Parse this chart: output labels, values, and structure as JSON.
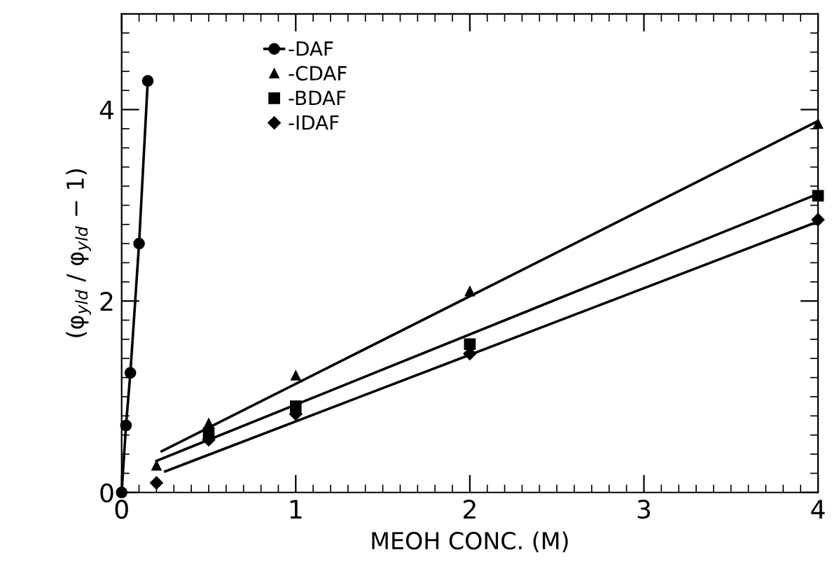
{
  "chart_data": {
    "type": "scatter",
    "xlabel": "MEOH CONC. (M)",
    "ylabel": "(φ$_{yld}$ / φ$_{yld}$ − 1)",
    "xlim": [
      0,
      4
    ],
    "ylim": [
      0,
      5
    ],
    "xticks": [
      0,
      1,
      2,
      3,
      4
    ],
    "yticks": [
      0,
      2,
      4
    ],
    "grid": false,
    "legend": "top left",
    "series": [
      {
        "name": "-DAF",
        "type": "line",
        "marker": "circle",
        "color": "#000000",
        "x": [
          0,
          0.025,
          0.05,
          0.1,
          0.15
        ],
        "values": [
          0,
          0.7,
          1.25,
          2.6,
          4.3
        ]
      },
      {
        "name": "-CDAF",
        "marker": "triangle",
        "color": "#000000",
        "x": [
          0.2,
          0.5,
          1,
          2,
          4
        ],
        "values": [
          0.28,
          0.72,
          1.22,
          2.1,
          3.85
        ]
      },
      {
        "name": "-BDAF",
        "marker": "square",
        "color": "#000000",
        "x": [
          0.5,
          1,
          2,
          4
        ],
        "values": [
          0.62,
          0.9,
          1.55,
          3.1
        ]
      },
      {
        "name": "-IDAF",
        "marker": "diamond",
        "color": "#000000",
        "x": [
          0.2,
          0.5,
          1,
          2,
          4
        ],
        "values": [
          0.1,
          0.55,
          0.82,
          1.45,
          2.85
        ]
      },
      {
        "type": "line",
        "marker": "none",
        "color": "#000000",
        "x": [
          0.23,
          4
        ],
        "values": [
          0.43,
          3.88
        ]
      },
      {
        "type": "line",
        "marker": "none",
        "color": "#000000",
        "x": [
          0.2,
          4
        ],
        "values": [
          0.33,
          3.12
        ]
      },
      {
        "type": "line",
        "marker": "none",
        "color": "#000000",
        "x": [
          0.25,
          4
        ],
        "values": [
          0.22,
          2.83
        ]
      }
    ]
  }
}
